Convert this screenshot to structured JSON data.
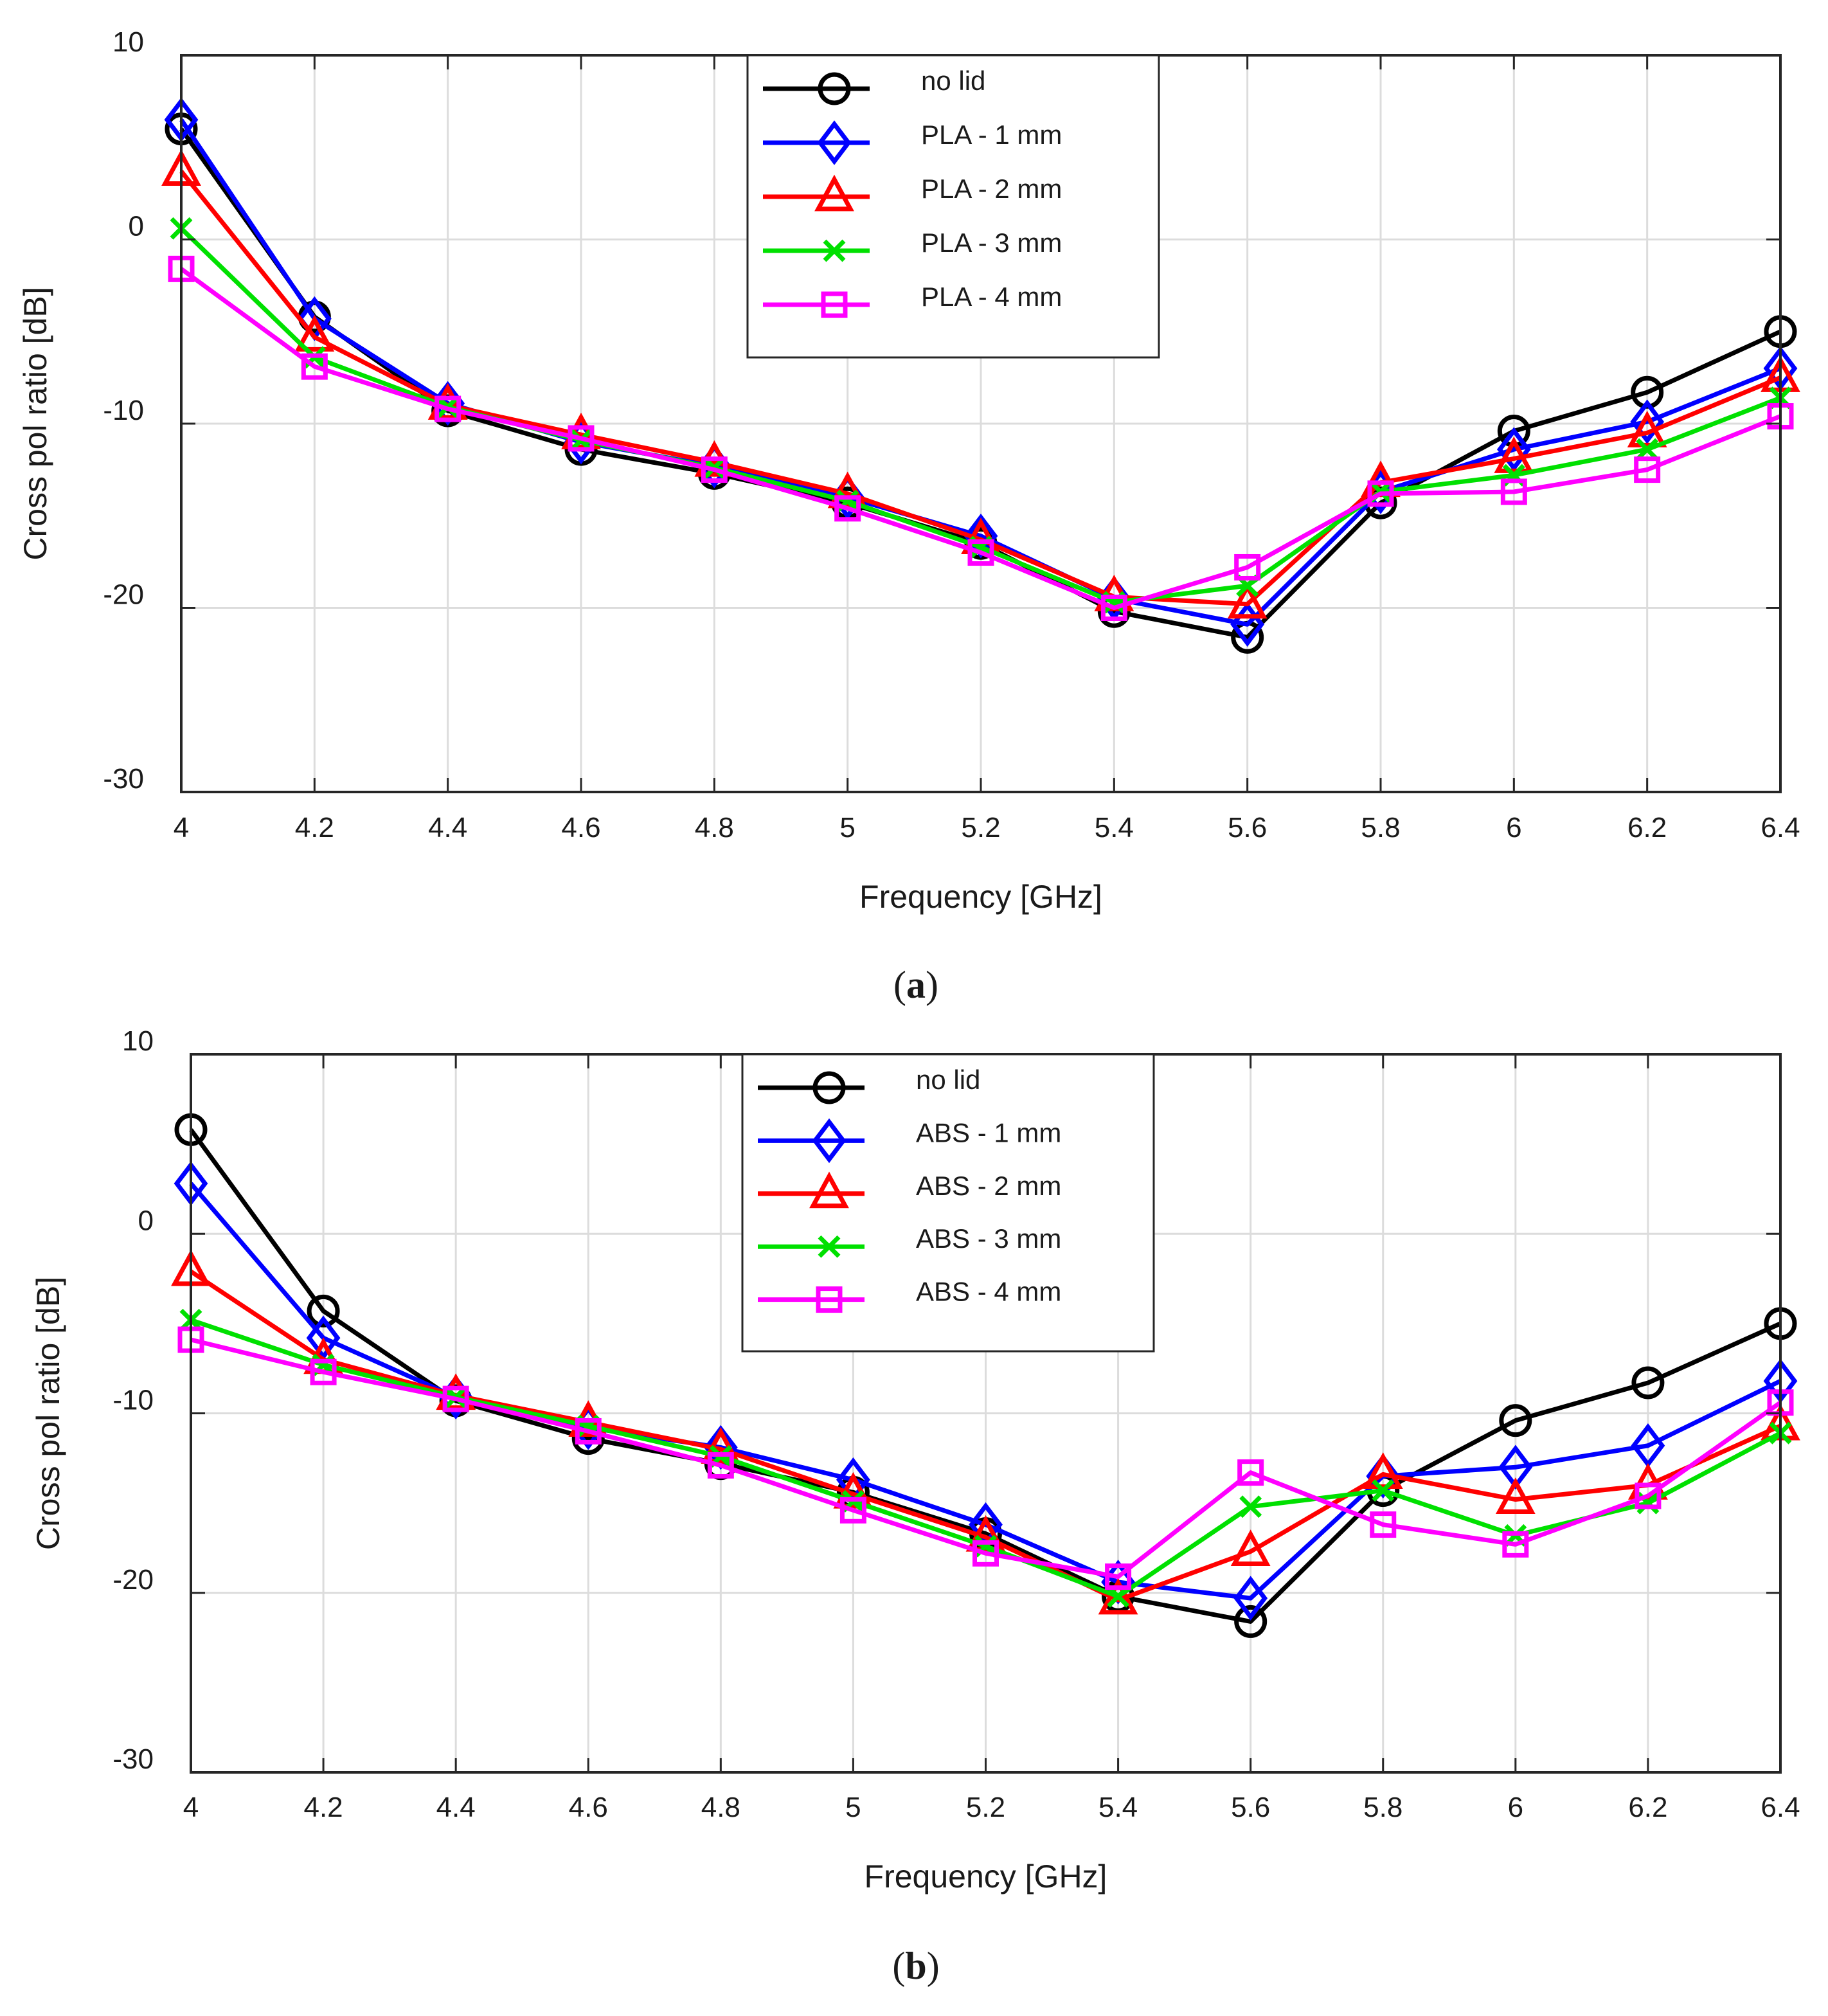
{
  "panels": [
    {
      "id": "a",
      "caption_pre": "(",
      "caption_letter": "a",
      "caption_post": ")"
    },
    {
      "id": "b",
      "caption_pre": "(",
      "caption_letter": "b",
      "caption_post": ")"
    }
  ],
  "chart_data": [
    {
      "type": "line",
      "xlabel": "Frequency [GHz]",
      "ylabel": "Cross pol ratio [dB]",
      "xlim": [
        4,
        6.4
      ],
      "ylim": [
        -30,
        10
      ],
      "x": [
        4,
        4.2,
        4.4,
        4.6,
        4.8,
        5,
        5.2,
        5.4,
        5.6,
        5.8,
        6,
        6.2,
        6.4
      ],
      "x_ticks": [
        "4",
        "4.2",
        "4.4",
        "4.6",
        "4.8",
        "5",
        "5.2",
        "5.4",
        "5.6",
        "5.8",
        "6",
        "6.2",
        "6.4"
      ],
      "y_ticks": [
        {
          "value": 10,
          "label": "10"
        },
        {
          "value": 0,
          "label": "0"
        },
        {
          "value": -10,
          "label": "-10"
        },
        {
          "value": -20,
          "label": "-20"
        },
        {
          "value": -30,
          "label": "-30"
        }
      ],
      "grid": true,
      "legend_position": "top-center",
      "series": [
        {
          "name": "no lid",
          "color": "#000000",
          "marker": "circle",
          "values": [
            6.0,
            -4.2,
            -9.3,
            -11.4,
            -12.7,
            -14.3,
            -16.5,
            -20.2,
            -21.6,
            -14.3,
            -10.4,
            -8.3,
            -5.0
          ]
        },
        {
          "name": "PLA - 1 mm",
          "color": "#0000ff",
          "marker": "diamond",
          "values": [
            6.5,
            -4.3,
            -8.9,
            -11.0,
            -12.3,
            -14.0,
            -16.1,
            -19.5,
            -20.9,
            -13.7,
            -11.4,
            -9.9,
            -7.0
          ]
        },
        {
          "name": "PLA - 2 mm",
          "color": "#ff0000",
          "marker": "triangle",
          "values": [
            3.7,
            -5.3,
            -9.0,
            -10.6,
            -12.1,
            -13.8,
            -16.3,
            -19.4,
            -19.8,
            -13.2,
            -11.9,
            -10.5,
            -7.5
          ]
        },
        {
          "name": "PLA - 3 mm",
          "color": "#00e000",
          "marker": "x",
          "values": [
            0.6,
            -6.4,
            -9.1,
            -10.9,
            -12.4,
            -14.2,
            -16.7,
            -19.7,
            -18.8,
            -13.7,
            -12.8,
            -11.4,
            -8.6
          ]
        },
        {
          "name": "PLA - 4 mm",
          "color": "#ff00ff",
          "marker": "square",
          "values": [
            -1.6,
            -6.9,
            -9.2,
            -10.8,
            -12.5,
            -14.6,
            -17.0,
            -20.0,
            -17.8,
            -13.8,
            -13.7,
            -12.5,
            -9.6
          ]
        }
      ]
    },
    {
      "type": "line",
      "xlabel": "Frequency [GHz]",
      "ylabel": "Cross pol ratio [dB]",
      "xlim": [
        4,
        6.4
      ],
      "ylim": [
        -30,
        10
      ],
      "x": [
        4,
        4.2,
        4.4,
        4.6,
        4.8,
        5,
        5.2,
        5.4,
        5.6,
        5.8,
        6,
        6.2,
        6.4
      ],
      "x_ticks": [
        "4",
        "4.2",
        "4.4",
        "4.6",
        "4.8",
        "5",
        "5.2",
        "5.4",
        "5.6",
        "5.8",
        "6",
        "6.2",
        "6.4"
      ],
      "y_ticks": [
        {
          "value": 10,
          "label": "10"
        },
        {
          "value": 0,
          "label": "0"
        },
        {
          "value": -10,
          "label": "-10"
        },
        {
          "value": -20,
          "label": "-20"
        },
        {
          "value": -30,
          "label": "-30"
        }
      ],
      "grid": true,
      "legend_position": "top-center",
      "series": [
        {
          "name": "no lid",
          "color": "#000000",
          "marker": "circle",
          "values": [
            5.8,
            -4.3,
            -9.3,
            -11.4,
            -12.8,
            -14.4,
            -16.7,
            -20.2,
            -21.6,
            -14.3,
            -10.4,
            -8.3,
            -5.0
          ]
        },
        {
          "name": "ABS - 1 mm",
          "color": "#0000ff",
          "marker": "diamond",
          "values": [
            2.8,
            -5.8,
            -9.1,
            -10.8,
            -11.9,
            -13.7,
            -16.2,
            -19.4,
            -20.3,
            -13.5,
            -13.0,
            -11.8,
            -8.2
          ]
        },
        {
          "name": "ABS - 2 mm",
          "color": "#ff0000",
          "marker": "triangle",
          "values": [
            -2.1,
            -7.0,
            -9.0,
            -10.5,
            -12.0,
            -14.5,
            -16.9,
            -20.4,
            -17.7,
            -13.4,
            -14.8,
            -14.0,
            -10.7
          ]
        },
        {
          "name": "ABS - 3 mm",
          "color": "#00e000",
          "marker": "x",
          "values": [
            -4.8,
            -7.3,
            -9.1,
            -10.7,
            -12.4,
            -14.9,
            -17.4,
            -20.2,
            -15.2,
            -14.3,
            -16.8,
            -15.0,
            -11.1
          ]
        },
        {
          "name": "ABS - 4 mm",
          "color": "#ff00ff",
          "marker": "square",
          "values": [
            -5.9,
            -7.7,
            -9.2,
            -11.0,
            -12.9,
            -15.4,
            -17.8,
            -19.1,
            -13.3,
            -16.2,
            -17.3,
            -14.6,
            -9.4
          ]
        }
      ]
    }
  ]
}
